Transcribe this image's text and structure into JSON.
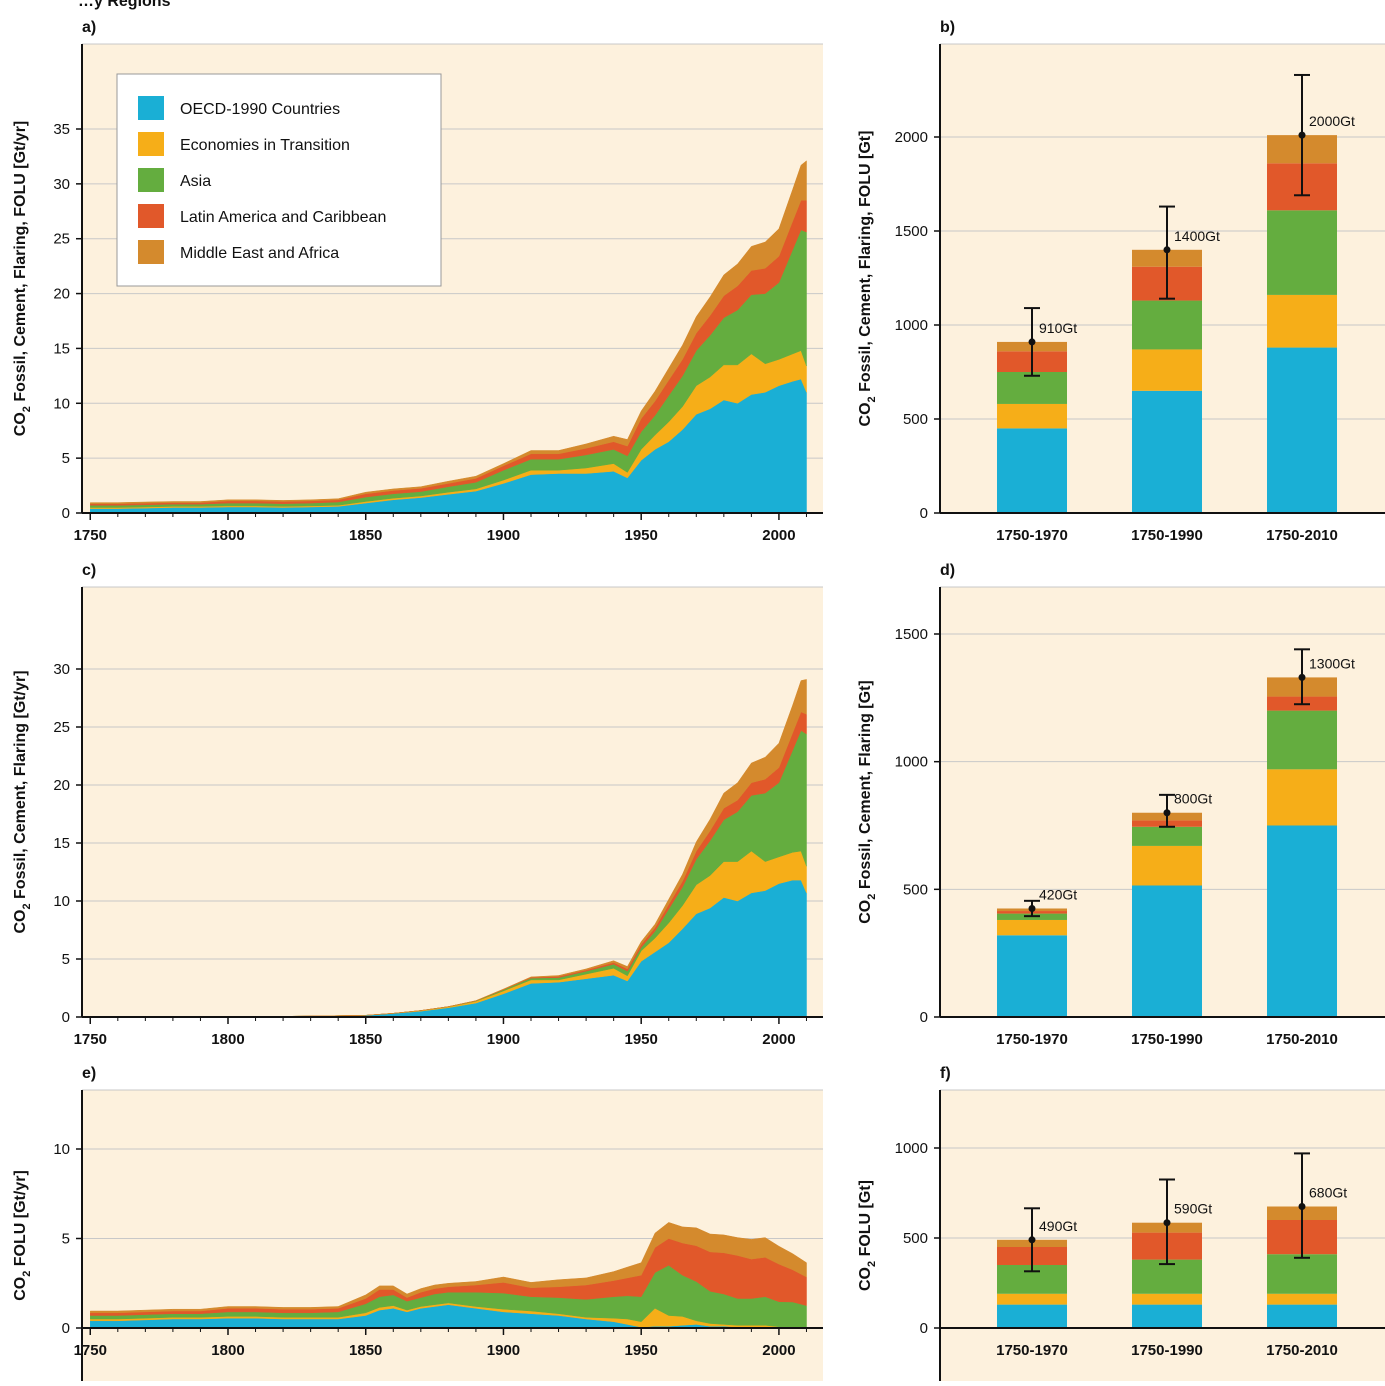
{
  "page_title": "…y Regions",
  "legend": [
    {
      "name": "OECD-1990 Countries",
      "color": "#1aafd5"
    },
    {
      "name": "Economies in Transition",
      "color": "#f6ae18"
    },
    {
      "name": "Asia",
      "color": "#64ad3f"
    },
    {
      "name": "Latin America and Caribbean",
      "color": "#e1582a"
    },
    {
      "name": "Middle East and Africa",
      "color": "#d48a2d"
    }
  ],
  "colors": {
    "background": "#fdf1dd",
    "grid": "#c8c8c8",
    "axis": "#111111"
  },
  "chart_data": [
    {
      "panel": "a)",
      "type": "area",
      "stacked": true,
      "ylabel": "CO2 Fossil, Cement, Flaring, FOLU [Gt/yr]",
      "xlim": [
        1747,
        2016
      ],
      "ylim": [
        0,
        40
      ],
      "xticks": [
        1750,
        1800,
        1850,
        1900,
        1950,
        2000
      ],
      "yticks": [
        0,
        5,
        10,
        15,
        20,
        25,
        30,
        35
      ],
      "x": [
        1750,
        1760,
        1770,
        1780,
        1790,
        1800,
        1810,
        1820,
        1830,
        1840,
        1850,
        1860,
        1870,
        1880,
        1890,
        1900,
        1910,
        1920,
        1930,
        1940,
        1945,
        1950,
        1955,
        1960,
        1965,
        1970,
        1975,
        1980,
        1985,
        1990,
        1995,
        2000,
        2005,
        2008,
        2010
      ],
      "series": [
        {
          "name": "OECD-1990 Countries",
          "values": [
            0.4,
            0.4,
            0.45,
            0.5,
            0.5,
            0.55,
            0.55,
            0.5,
            0.55,
            0.6,
            0.9,
            1.2,
            1.4,
            1.7,
            2.0,
            2.7,
            3.5,
            3.6,
            3.6,
            3.8,
            3.2,
            4.8,
            5.8,
            6.5,
            7.6,
            9.0,
            9.5,
            10.3,
            10.0,
            10.8,
            11.0,
            11.6,
            12.0,
            12.2,
            11.0
          ]
        },
        {
          "name": "Economies in Transition",
          "values": [
            0.1,
            0.1,
            0.1,
            0.1,
            0.1,
            0.1,
            0.1,
            0.1,
            0.1,
            0.1,
            0.15,
            0.15,
            0.15,
            0.2,
            0.2,
            0.3,
            0.4,
            0.3,
            0.5,
            0.7,
            0.5,
            1.0,
            1.3,
            1.8,
            2.1,
            2.6,
            2.9,
            3.2,
            3.5,
            3.7,
            2.6,
            2.4,
            2.5,
            2.6,
            2.4
          ]
        },
        {
          "name": "Asia",
          "values": [
            0.2,
            0.2,
            0.2,
            0.2,
            0.2,
            0.25,
            0.25,
            0.25,
            0.25,
            0.3,
            0.4,
            0.4,
            0.4,
            0.5,
            0.6,
            0.9,
            1.0,
            1.0,
            1.2,
            1.3,
            1.5,
            1.6,
            1.8,
            2.4,
            2.8,
            3.2,
            3.8,
            4.3,
            5.0,
            5.4,
            6.4,
            7.0,
            9.5,
            11.0,
            12.2
          ]
        },
        {
          "name": "Latin America and Caribbean",
          "values": [
            0.15,
            0.15,
            0.15,
            0.15,
            0.15,
            0.2,
            0.2,
            0.2,
            0.2,
            0.2,
            0.3,
            0.3,
            0.3,
            0.3,
            0.35,
            0.4,
            0.5,
            0.5,
            0.6,
            0.7,
            0.9,
            1.2,
            1.3,
            1.4,
            1.5,
            1.6,
            1.8,
            2.0,
            2.2,
            2.2,
            2.3,
            2.4,
            2.6,
            2.7,
            2.9
          ]
        },
        {
          "name": "Middle East and Africa",
          "values": [
            0.1,
            0.1,
            0.1,
            0.1,
            0.1,
            0.1,
            0.1,
            0.1,
            0.1,
            0.1,
            0.15,
            0.15,
            0.15,
            0.2,
            0.2,
            0.2,
            0.3,
            0.3,
            0.4,
            0.5,
            0.6,
            0.7,
            0.9,
            1.1,
            1.3,
            1.5,
            1.7,
            1.9,
            2.0,
            2.2,
            2.4,
            2.5,
            2.9,
            3.2,
            3.6
          ]
        }
      ]
    },
    {
      "panel": "b)",
      "type": "bar",
      "stacked": true,
      "ylabel": "CO2 Fossil, Cement, Flaring, FOLU [Gt]",
      "ylim": [
        0,
        2500
      ],
      "yticks": [
        0,
        500,
        1000,
        1500,
        2000
      ],
      "categories": [
        "1750-1970",
        "1750-1990",
        "1750-2010"
      ],
      "series": [
        {
          "name": "OECD-1990 Countries",
          "values": [
            450,
            650,
            880
          ]
        },
        {
          "name": "Economies in Transition",
          "values": [
            130,
            220,
            280
          ]
        },
        {
          "name": "Asia",
          "values": [
            170,
            260,
            450
          ]
        },
        {
          "name": "Latin America and Caribbean",
          "values": [
            110,
            180,
            250
          ]
        },
        {
          "name": "Middle East and Africa",
          "values": [
            50,
            90,
            150
          ]
        }
      ],
      "totals": [
        910,
        1400,
        2010
      ],
      "error_bars": [
        [
          730,
          1090
        ],
        [
          1140,
          1630
        ],
        [
          1690,
          2330
        ]
      ],
      "labels": [
        "910Gt",
        "1400Gt",
        "2000Gt"
      ]
    },
    {
      "panel": "c)",
      "type": "area",
      "stacked": true,
      "ylabel": "CO2 Fossil, Cement, Flaring [Gt/yr]",
      "xlim": [
        1747,
        2016
      ],
      "ylim": [
        0,
        35
      ],
      "xticks": [
        1750,
        1800,
        1850,
        1900,
        1950,
        2000
      ],
      "yticks": [
        0,
        5,
        10,
        15,
        20,
        25,
        30
      ],
      "x": [
        1750,
        1800,
        1830,
        1850,
        1860,
        1870,
        1880,
        1890,
        1900,
        1910,
        1920,
        1930,
        1940,
        1945,
        1950,
        1955,
        1960,
        1965,
        1970,
        1975,
        1980,
        1985,
        1990,
        1995,
        2000,
        2005,
        2008,
        2010
      ],
      "series": [
        {
          "name": "OECD-1990 Countries",
          "values": [
            0.0,
            0.02,
            0.08,
            0.15,
            0.3,
            0.5,
            0.8,
            1.2,
            2.0,
            2.9,
            3.0,
            3.3,
            3.6,
            3.1,
            4.8,
            5.6,
            6.4,
            7.6,
            8.9,
            9.4,
            10.3,
            10.0,
            10.7,
            10.9,
            11.5,
            11.8,
            11.8,
            10.7
          ]
        },
        {
          "name": "Economies in Transition",
          "values": [
            0,
            0,
            0,
            0,
            0.02,
            0.05,
            0.08,
            0.15,
            0.25,
            0.3,
            0.2,
            0.4,
            0.6,
            0.45,
            0.9,
            1.2,
            1.7,
            2.0,
            2.5,
            2.8,
            3.1,
            3.4,
            3.6,
            2.5,
            2.3,
            2.4,
            2.5,
            2.3
          ]
        },
        {
          "name": "Asia",
          "values": [
            0,
            0,
            0,
            0,
            0,
            0.01,
            0.02,
            0.04,
            0.1,
            0.15,
            0.2,
            0.25,
            0.35,
            0.4,
            0.3,
            0.6,
            1.2,
            1.6,
            2.2,
            3.0,
            3.6,
            4.3,
            4.8,
            5.9,
            6.4,
            8.8,
            10.4,
            11.4
          ]
        },
        {
          "name": "Latin America and Caribbean",
          "values": [
            0,
            0,
            0,
            0,
            0,
            0,
            0,
            0.01,
            0.03,
            0.06,
            0.1,
            0.1,
            0.15,
            0.2,
            0.25,
            0.3,
            0.4,
            0.5,
            0.7,
            0.85,
            1.0,
            1.0,
            1.1,
            1.2,
            1.3,
            1.5,
            1.6,
            1.7
          ]
        },
        {
          "name": "Middle East and Africa",
          "values": [
            0,
            0,
            0,
            0,
            0,
            0,
            0,
            0.01,
            0.03,
            0.05,
            0.08,
            0.1,
            0.15,
            0.2,
            0.25,
            0.3,
            0.45,
            0.6,
            0.8,
            1.0,
            1.3,
            1.5,
            1.7,
            1.9,
            2.1,
            2.4,
            2.7,
            3.0
          ]
        }
      ]
    },
    {
      "panel": "d)",
      "type": "bar",
      "stacked": true,
      "ylabel": "CO2 Fossil, Cement, Flaring [Gt]",
      "ylim": [
        0,
        1700
      ],
      "yticks": [
        0,
        500,
        1000,
        1500
      ],
      "categories": [
        "1750-1970",
        "1750-1990",
        "1750-2010"
      ],
      "series": [
        {
          "name": "OECD-1990 Countries",
          "values": [
            320,
            515,
            750
          ]
        },
        {
          "name": "Economies in Transition",
          "values": [
            60,
            155,
            220
          ]
        },
        {
          "name": "Asia",
          "values": [
            25,
            75,
            230
          ]
        },
        {
          "name": "Latin America and Caribbean",
          "values": [
            10,
            25,
            55
          ]
        },
        {
          "name": "Middle East and Africa",
          "values": [
            10,
            30,
            75
          ]
        }
      ],
      "totals": [
        425,
        800,
        1330
      ],
      "error_bars": [
        [
          395,
          455
        ],
        [
          745,
          870
        ],
        [
          1225,
          1440
        ]
      ],
      "labels": [
        "420Gt",
        "800Gt",
        "1300Gt"
      ]
    },
    {
      "panel": "e)",
      "type": "area",
      "stacked": true,
      "ylabel": "CO2 FOLU [Gt/yr]",
      "xlim": [
        1747,
        2016
      ],
      "ylim": [
        -0.4,
        13.5
      ],
      "xticks": [
        1750,
        1800,
        1850,
        1900,
        1950,
        2000
      ],
      "yticks": [
        0,
        5,
        10
      ],
      "x": [
        1750,
        1760,
        1770,
        1780,
        1790,
        1800,
        1810,
        1820,
        1830,
        1840,
        1850,
        1855,
        1860,
        1865,
        1870,
        1875,
        1880,
        1890,
        1900,
        1910,
        1920,
        1930,
        1940,
        1945,
        1950,
        1955,
        1960,
        1965,
        1970,
        1975,
        1980,
        1985,
        1990,
        1995,
        2000,
        2005,
        2010
      ],
      "series": [
        {
          "name": "OECD-1990 Countries",
          "values": [
            0.4,
            0.4,
            0.45,
            0.5,
            0.5,
            0.55,
            0.55,
            0.5,
            0.5,
            0.5,
            0.7,
            1.0,
            1.1,
            0.9,
            1.1,
            1.2,
            1.3,
            1.1,
            0.9,
            0.8,
            0.7,
            0.5,
            0.35,
            0.2,
            0.05,
            0.1,
            0.1,
            0.15,
            0.2,
            0.1,
            0.1,
            0.05,
            0.05,
            0.05,
            0.02,
            0.0,
            0.0
          ]
        },
        {
          "name": "Economies in Transition",
          "values": [
            0.1,
            0.1,
            0.1,
            0.1,
            0.1,
            0.1,
            0.1,
            0.1,
            0.1,
            0.1,
            0.15,
            0.15,
            0.15,
            0.1,
            0.1,
            0.1,
            0.1,
            0.1,
            0.15,
            0.15,
            0.1,
            0.1,
            0.2,
            0.3,
            0.3,
            1.0,
            0.6,
            0.5,
            0.2,
            0.15,
            0.1,
            0.1,
            0.1,
            0.1,
            0.05,
            0.05,
            0.05
          ]
        },
        {
          "name": "Asia",
          "values": [
            0.2,
            0.2,
            0.2,
            0.2,
            0.2,
            0.25,
            0.25,
            0.25,
            0.25,
            0.3,
            0.5,
            0.6,
            0.6,
            0.5,
            0.5,
            0.6,
            0.6,
            0.8,
            0.9,
            0.8,
            0.9,
            1.0,
            1.2,
            1.3,
            1.4,
            2.0,
            2.8,
            2.3,
            2.2,
            1.8,
            1.7,
            1.5,
            1.5,
            1.6,
            1.4,
            1.4,
            1.2
          ]
        },
        {
          "name": "Latin America and Caribbean",
          "values": [
            0.15,
            0.15,
            0.15,
            0.15,
            0.15,
            0.2,
            0.2,
            0.2,
            0.2,
            0.2,
            0.3,
            0.4,
            0.3,
            0.2,
            0.3,
            0.3,
            0.3,
            0.4,
            0.6,
            0.5,
            0.6,
            0.8,
            0.9,
            1.0,
            1.2,
            1.4,
            1.5,
            1.8,
            2.0,
            2.2,
            2.3,
            2.4,
            2.2,
            2.2,
            2.1,
            1.8,
            1.6
          ]
        },
        {
          "name": "Middle East and Africa",
          "values": [
            0.1,
            0.1,
            0.1,
            0.1,
            0.1,
            0.1,
            0.1,
            0.1,
            0.1,
            0.1,
            0.2,
            0.2,
            0.2,
            0.2,
            0.2,
            0.2,
            0.2,
            0.2,
            0.3,
            0.3,
            0.4,
            0.4,
            0.5,
            0.6,
            0.7,
            0.8,
            0.9,
            0.9,
            1.0,
            1.0,
            1.0,
            1.0,
            1.1,
            1.1,
            1.0,
            0.9,
            0.8
          ]
        }
      ]
    },
    {
      "panel": "f)",
      "type": "bar",
      "stacked": true,
      "ylabel": "CO2 FOLU [Gt]",
      "ylim": [
        0,
        1300
      ],
      "yticks": [
        0,
        500,
        1000
      ],
      "categories": [
        "1750-1970",
        "1750-1990",
        "1750-2010"
      ],
      "series": [
        {
          "name": "OECD-1990 Countries",
          "values": [
            130,
            130,
            130
          ]
        },
        {
          "name": "Economies in Transition",
          "values": [
            60,
            60,
            60
          ]
        },
        {
          "name": "Asia",
          "values": [
            160,
            190,
            220
          ]
        },
        {
          "name": "Latin America and Caribbean",
          "values": [
            100,
            150,
            190
          ]
        },
        {
          "name": "Middle East and Africa",
          "values": [
            40,
            55,
            75
          ]
        }
      ],
      "totals": [
        490,
        585,
        675
      ],
      "error_bars": [
        [
          315,
          665
        ],
        [
          355,
          825
        ],
        [
          390,
          970
        ]
      ],
      "labels": [
        "490Gt",
        "590Gt",
        "680Gt"
      ]
    }
  ]
}
